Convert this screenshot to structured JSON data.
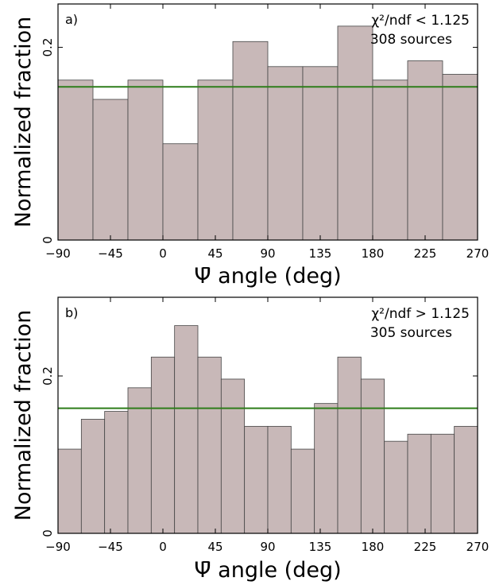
{
  "chart_data": [
    {
      "type": "bar",
      "panel_label": "a)",
      "annotation_chi2": "χ²/ndf < 1.125",
      "annotation_sources": "308 sources",
      "xlabel": "Ψ̄ angle (deg)",
      "ylabel": "Normalized fraction",
      "xlim": [
        -90,
        270
      ],
      "ylim": [
        0,
        0.245
      ],
      "xticks": [
        -90,
        -45,
        0,
        45,
        90,
        135,
        180,
        225,
        270
      ],
      "xtick_labels": [
        "−90",
        "−45",
        "0",
        "45",
        "90",
        "135",
        "180",
        "225",
        "270"
      ],
      "yticks": [
        0,
        0.2
      ],
      "ytick_labels": [
        "0",
        "0.2"
      ],
      "bin_edges": [
        -90,
        -60,
        -30,
        0,
        30,
        60,
        90,
        120,
        150,
        180,
        210,
        240,
        270
      ],
      "values": [
        0.166,
        0.146,
        0.166,
        0.1,
        0.166,
        0.206,
        0.18,
        0.18,
        0.222,
        0.166,
        0.186,
        0.172
      ],
      "reference_y": 0.159,
      "reference_color": "#2e7d1a",
      "bar_color": "#c8b8b8"
    },
    {
      "type": "bar",
      "panel_label": "b)",
      "annotation_chi2": "χ²/ndf > 1.125",
      "annotation_sources": "305 sources",
      "xlabel": "Ψ̄ angle (deg)",
      "ylabel": "Normalized fraction",
      "xlim": [
        -90,
        270
      ],
      "ylim": [
        0,
        0.3
      ],
      "xticks": [
        -90,
        -45,
        0,
        45,
        90,
        135,
        180,
        225,
        270
      ],
      "xtick_labels": [
        "−90",
        "−45",
        "0",
        "45",
        "90",
        "135",
        "180",
        "225",
        "270"
      ],
      "yticks": [
        0,
        0.2
      ],
      "ytick_labels": [
        "0",
        "0.2"
      ],
      "bin_edges": [
        -90,
        -70,
        -50,
        -30,
        -10,
        10,
        30,
        50,
        70,
        90,
        110,
        130,
        150,
        170,
        190,
        210,
        230,
        250,
        270
      ],
      "values": [
        0.107,
        0.145,
        0.155,
        0.185,
        0.224,
        0.264,
        0.224,
        0.196,
        0.136,
        0.136,
        0.107,
        0.165,
        0.224,
        0.196,
        0.117,
        0.126,
        0.126,
        0.136
      ],
      "reference_y": 0.159,
      "reference_color": "#2e7d1a",
      "bar_color": "#c8b8b8"
    }
  ]
}
